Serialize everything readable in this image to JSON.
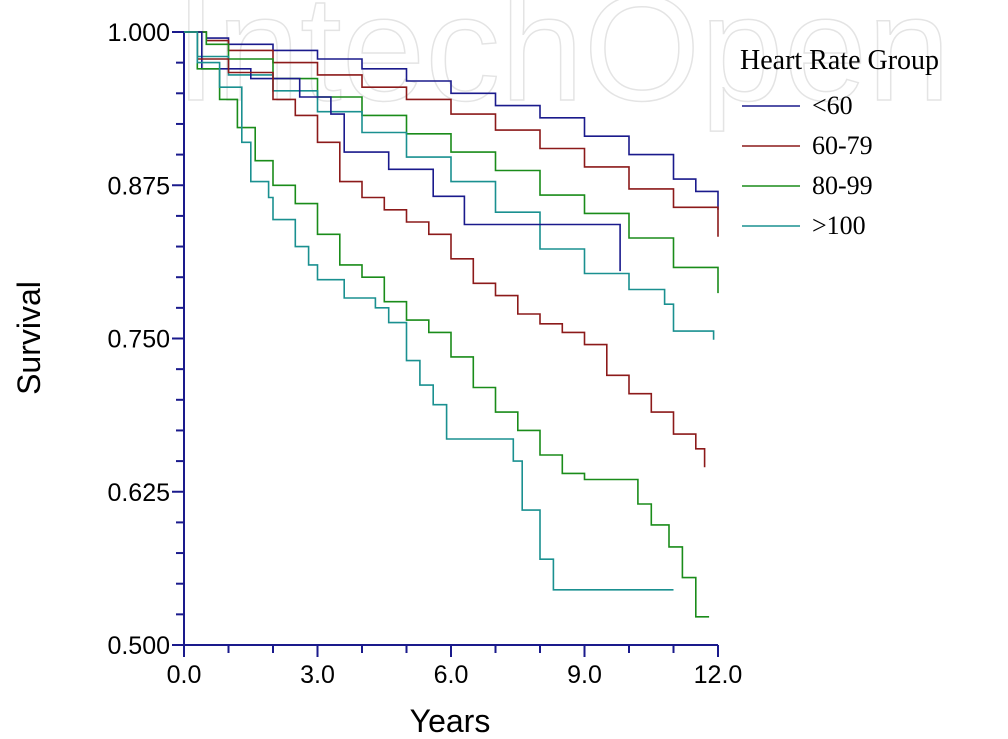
{
  "watermark": "IntechOpen",
  "chart_data": {
    "type": "line",
    "step": true,
    "xlabel": "Years",
    "ylabel": "Survival",
    "xlim": [
      0,
      12
    ],
    "ylim": [
      0.5,
      1.0
    ],
    "x_ticks": [
      "0.0",
      "3.0",
      "6.0",
      "9.0",
      "12.0"
    ],
    "y_ticks": [
      "0.500",
      "0.625",
      "0.750",
      "0.875",
      "1.000"
    ],
    "legend_title": "Heart Rate Group",
    "legend_position": "top-right",
    "series": [
      {
        "name": "<60",
        "color": "#1a1a8c",
        "points": [
          [
            0,
            1.0
          ],
          [
            0.5,
            0.995
          ],
          [
            1,
            0.99
          ],
          [
            2,
            0.985
          ],
          [
            3,
            0.978
          ],
          [
            4,
            0.97
          ],
          [
            5,
            0.96
          ],
          [
            6,
            0.95
          ],
          [
            7,
            0.94
          ],
          [
            8,
            0.93
          ],
          [
            9,
            0.915
          ],
          [
            10,
            0.9
          ],
          [
            11,
            0.88
          ],
          [
            11.5,
            0.87
          ],
          [
            12,
            0.855
          ]
        ]
      },
      {
        "name": "60-79",
        "color": "#8c1a1a",
        "points": [
          [
            0,
            1.0
          ],
          [
            0.5,
            0.993
          ],
          [
            1,
            0.985
          ],
          [
            2,
            0.975
          ],
          [
            3,
            0.965
          ],
          [
            4,
            0.955
          ],
          [
            5,
            0.945
          ],
          [
            6,
            0.933
          ],
          [
            7,
            0.92
          ],
          [
            8,
            0.905
          ],
          [
            9,
            0.89
          ],
          [
            10,
            0.872
          ],
          [
            11,
            0.857
          ],
          [
            12,
            0.833
          ]
        ]
      },
      {
        "name": "80-99",
        "color": "#1a8c1a",
        "points": [
          [
            0,
            1.0
          ],
          [
            0.5,
            0.99
          ],
          [
            1,
            0.978
          ],
          [
            2,
            0.962
          ],
          [
            3,
            0.947
          ],
          [
            4,
            0.932
          ],
          [
            5,
            0.917
          ],
          [
            6,
            0.902
          ],
          [
            7,
            0.887
          ],
          [
            8,
            0.867
          ],
          [
            9,
            0.852
          ],
          [
            10,
            0.832
          ],
          [
            11,
            0.808
          ],
          [
            12,
            0.787
          ]
        ]
      },
      {
        "name": ">100",
        "color": "#1a9090",
        "points": [
          [
            0,
            1.0
          ],
          [
            0.3,
            0.98
          ],
          [
            1,
            0.965
          ],
          [
            2,
            0.952
          ],
          [
            3,
            0.935
          ],
          [
            4,
            0.918
          ],
          [
            5,
            0.898
          ],
          [
            6,
            0.878
          ],
          [
            7,
            0.853
          ],
          [
            8,
            0.823
          ],
          [
            9,
            0.803
          ],
          [
            10,
            0.79
          ],
          [
            10.8,
            0.778
          ],
          [
            11,
            0.756
          ],
          [
            11.9,
            0.749
          ]
        ]
      },
      {
        "name": "",
        "color": "#1a1a8c",
        "points": [
          [
            0,
            1.0
          ],
          [
            0.4,
            0.97
          ],
          [
            1.5,
            0.97
          ],
          [
            1.5,
            0.962
          ],
          [
            2.6,
            0.962
          ],
          [
            2.6,
            0.947
          ],
          [
            3.3,
            0.947
          ],
          [
            3.3,
            0.933
          ],
          [
            3.6,
            0.933
          ],
          [
            3.6,
            0.902
          ],
          [
            4.6,
            0.902
          ],
          [
            4.6,
            0.888
          ],
          [
            5.6,
            0.888
          ],
          [
            5.6,
            0.866
          ],
          [
            6.3,
            0.866
          ],
          [
            6.3,
            0.843
          ],
          [
            9.8,
            0.843
          ],
          [
            9.8,
            0.805
          ]
        ]
      },
      {
        "name": "",
        "color": "#8c1a1a",
        "points": [
          [
            0,
            1.0
          ],
          [
            0.3,
            0.978
          ],
          [
            1,
            0.967
          ],
          [
            2,
            0.945
          ],
          [
            2.5,
            0.932
          ],
          [
            3,
            0.91
          ],
          [
            3.5,
            0.878
          ],
          [
            4,
            0.865
          ],
          [
            4.5,
            0.855
          ],
          [
            5,
            0.845
          ],
          [
            5.5,
            0.835
          ],
          [
            6,
            0.815
          ],
          [
            6.5,
            0.795
          ],
          [
            7,
            0.785
          ],
          [
            7.5,
            0.77
          ],
          [
            8,
            0.762
          ],
          [
            8.5,
            0.755
          ],
          [
            9,
            0.745
          ],
          [
            9.5,
            0.72
          ],
          [
            10,
            0.705
          ],
          [
            10.5,
            0.69
          ],
          [
            11,
            0.672
          ],
          [
            11.5,
            0.66
          ],
          [
            11.7,
            0.645
          ]
        ]
      },
      {
        "name": "",
        "color": "#1a8c1a",
        "points": [
          [
            0,
            1.0
          ],
          [
            0.3,
            0.97
          ],
          [
            0.8,
            0.945
          ],
          [
            1.2,
            0.922
          ],
          [
            1.6,
            0.895
          ],
          [
            2,
            0.875
          ],
          [
            2.5,
            0.86
          ],
          [
            3,
            0.835
          ],
          [
            3.5,
            0.81
          ],
          [
            4,
            0.8
          ],
          [
            4.5,
            0.78
          ],
          [
            5,
            0.765
          ],
          [
            5.5,
            0.755
          ],
          [
            6,
            0.735
          ],
          [
            6.5,
            0.71
          ],
          [
            7,
            0.69
          ],
          [
            7.5,
            0.675
          ],
          [
            8,
            0.655
          ],
          [
            8.5,
            0.64
          ],
          [
            9,
            0.635
          ],
          [
            9.9,
            0.635
          ],
          [
            10.2,
            0.615
          ],
          [
            10.5,
            0.598
          ],
          [
            10.9,
            0.58
          ],
          [
            11.2,
            0.555
          ],
          [
            11.5,
            0.523
          ],
          [
            11.8,
            0.523
          ]
        ]
      },
      {
        "name": "",
        "color": "#1a9090",
        "points": [
          [
            0,
            1.0
          ],
          [
            0.3,
            0.975
          ],
          [
            0.8,
            0.955
          ],
          [
            1.3,
            0.91
          ],
          [
            1.5,
            0.878
          ],
          [
            1.9,
            0.865
          ],
          [
            2,
            0.847
          ],
          [
            2.5,
            0.825
          ],
          [
            2.8,
            0.81
          ],
          [
            3,
            0.798
          ],
          [
            3.6,
            0.783
          ],
          [
            4.3,
            0.775
          ],
          [
            4.6,
            0.763
          ],
          [
            5,
            0.732
          ],
          [
            5.3,
            0.712
          ],
          [
            5.6,
            0.696
          ],
          [
            5.9,
            0.668
          ],
          [
            7,
            0.668
          ],
          [
            7.4,
            0.65
          ],
          [
            7.6,
            0.61
          ],
          [
            8,
            0.57
          ],
          [
            8.3,
            0.545
          ],
          [
            11,
            0.545
          ]
        ]
      }
    ]
  }
}
